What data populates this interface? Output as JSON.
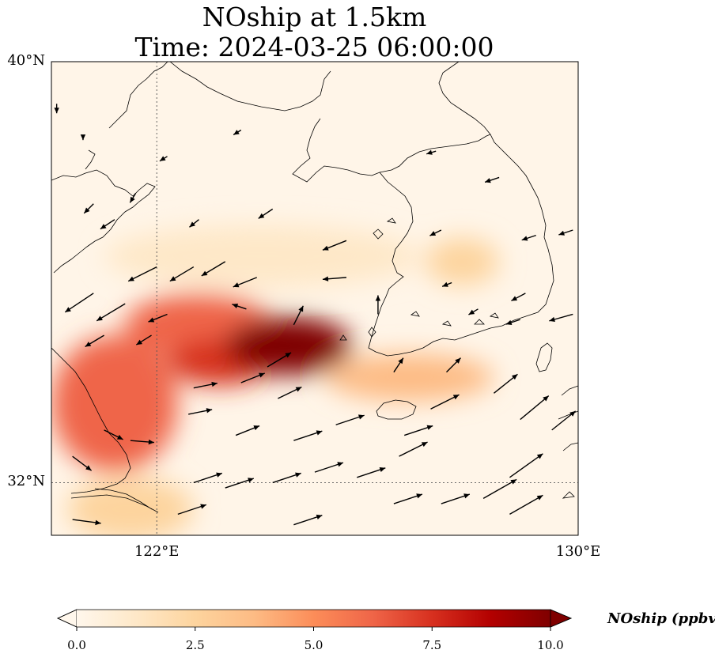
{
  "title": {
    "line1": "NOship at 1.5km",
    "line2": "Time: 2024-03-25 06:00:00"
  },
  "map": {
    "lon_range": [
      120,
      130
    ],
    "lat_range": [
      31,
      40
    ],
    "gridlines": {
      "lon": [
        122
      ],
      "lat": [
        32
      ]
    },
    "lon_ticks": [
      {
        "value": 122,
        "label": "122°E"
      },
      {
        "value": 130,
        "label": "130°E"
      }
    ],
    "lat_ticks": [
      {
        "value": 40,
        "label": "40°N"
      },
      {
        "value": 32,
        "label": "32°N"
      }
    ]
  },
  "colorbar": {
    "label": "NOship (ppbv)",
    "colormap": "OrRd",
    "range": [
      0,
      10
    ],
    "extend": "both",
    "ticks": [
      "0.0",
      "2.5",
      "5.0",
      "7.5",
      "10.0"
    ],
    "colors": [
      "#fff7ec",
      "#fee8c8",
      "#fdd49e",
      "#fdbb84",
      "#fc8d59",
      "#ef6548",
      "#d7301f",
      "#b30000",
      "#7f0000"
    ]
  },
  "field_blobs": [
    {
      "lon": 124.5,
      "lat": 34.6,
      "value": 9.5,
      "rx": 1.2,
      "ry": 0.55
    },
    {
      "lon": 123.2,
      "lat": 34.3,
      "value": 8.0,
      "rx": 1.0,
      "ry": 0.45
    },
    {
      "lon": 122.8,
      "lat": 35.0,
      "value": 6.5,
      "rx": 1.4,
      "ry": 0.6
    },
    {
      "lon": 121.2,
      "lat": 33.5,
      "value": 6.0,
      "rx": 1.2,
      "ry": 1.3
    },
    {
      "lon": 126.8,
      "lat": 34.0,
      "value": 3.5,
      "rx": 1.6,
      "ry": 0.45
    },
    {
      "lon": 127.8,
      "lat": 36.2,
      "value": 2.5,
      "rx": 0.7,
      "ry": 0.45
    },
    {
      "lon": 124.0,
      "lat": 36.3,
      "value": 1.2,
      "rx": 3.0,
      "ry": 0.6
    },
    {
      "lon": 121.5,
      "lat": 31.5,
      "value": 3.0,
      "rx": 1.2,
      "ry": 0.6
    }
  ],
  "wind_vectors": [
    {
      "lon": 120.1,
      "lat": 39.2,
      "u": 0.0,
      "v": -1.0
    },
    {
      "lon": 120.6,
      "lat": 38.6,
      "u": 0.0,
      "v": -0.5
    },
    {
      "lon": 120.8,
      "lat": 37.3,
      "u": -1.0,
      "v": -1.0
    },
    {
      "lon": 121.2,
      "lat": 37.0,
      "u": -1.5,
      "v": -1.0
    },
    {
      "lon": 121.6,
      "lat": 37.5,
      "u": -0.6,
      "v": -1.0
    },
    {
      "lon": 122.0,
      "lat": 36.1,
      "u": -3.0,
      "v": -1.5
    },
    {
      "lon": 122.7,
      "lat": 36.1,
      "u": -2.5,
      "v": -1.5
    },
    {
      "lon": 123.3,
      "lat": 36.2,
      "u": -2.5,
      "v": -1.5
    },
    {
      "lon": 123.9,
      "lat": 35.9,
      "u": -2.5,
      "v": -1.0
    },
    {
      "lon": 120.8,
      "lat": 35.6,
      "u": -3.0,
      "v": -2.0
    },
    {
      "lon": 121.4,
      "lat": 35.4,
      "u": -3.0,
      "v": -1.8
    },
    {
      "lon": 122.2,
      "lat": 35.2,
      "u": -2.0,
      "v": -0.8
    },
    {
      "lon": 121.0,
      "lat": 34.8,
      "u": -2.0,
      "v": -1.2
    },
    {
      "lon": 121.9,
      "lat": 34.8,
      "u": -1.6,
      "v": -1.0
    },
    {
      "lon": 123.7,
      "lat": 35.3,
      "u": -1.5,
      "v": 0.5
    },
    {
      "lon": 124.2,
      "lat": 37.2,
      "u": -1.5,
      "v": -1.0
    },
    {
      "lon": 122.8,
      "lat": 37.0,
      "u": -1.0,
      "v": -0.8
    },
    {
      "lon": 123.6,
      "lat": 38.7,
      "u": -0.8,
      "v": -0.5
    },
    {
      "lon": 122.2,
      "lat": 38.2,
      "u": -0.8,
      "v": -0.5
    },
    {
      "lon": 125.6,
      "lat": 36.6,
      "u": -2.5,
      "v": -1.0
    },
    {
      "lon": 125.6,
      "lat": 35.9,
      "u": -2.5,
      "v": -0.2
    },
    {
      "lon": 126.2,
      "lat": 35.2,
      "u": 0.0,
      "v": 2.0
    },
    {
      "lon": 126.5,
      "lat": 34.1,
      "u": 1.0,
      "v": 1.5
    },
    {
      "lon": 124.6,
      "lat": 35.0,
      "u": 1.0,
      "v": 2.0
    },
    {
      "lon": 124.1,
      "lat": 34.2,
      "u": 2.5,
      "v": 1.5
    },
    {
      "lon": 123.6,
      "lat": 33.9,
      "u": 2.5,
      "v": 1.0
    },
    {
      "lon": 122.7,
      "lat": 33.8,
      "u": 2.5,
      "v": 0.5
    },
    {
      "lon": 124.3,
      "lat": 33.6,
      "u": 2.5,
      "v": 1.2
    },
    {
      "lon": 122.6,
      "lat": 33.3,
      "u": 2.5,
      "v": 0.5
    },
    {
      "lon": 123.5,
      "lat": 32.9,
      "u": 2.5,
      "v": 1.0
    },
    {
      "lon": 124.6,
      "lat": 32.8,
      "u": 3.0,
      "v": 1.0
    },
    {
      "lon": 125.4,
      "lat": 33.1,
      "u": 3.0,
      "v": 1.0
    },
    {
      "lon": 126.7,
      "lat": 32.9,
      "u": 3.0,
      "v": 1.0
    },
    {
      "lon": 127.5,
      "lat": 34.1,
      "u": 1.5,
      "v": 1.5
    },
    {
      "lon": 127.2,
      "lat": 33.4,
      "u": 3.0,
      "v": 1.5
    },
    {
      "lon": 128.4,
      "lat": 33.7,
      "u": 2.5,
      "v": 2.0
    },
    {
      "lon": 128.9,
      "lat": 33.2,
      "u": 3.0,
      "v": 2.5
    },
    {
      "lon": 129.5,
      "lat": 33.0,
      "u": 2.5,
      "v": 2.0
    },
    {
      "lon": 120.4,
      "lat": 32.5,
      "u": 2.0,
      "v": -1.5
    },
    {
      "lon": 121.0,
      "lat": 33.0,
      "u": 2.0,
      "v": -1.0
    },
    {
      "lon": 121.5,
      "lat": 32.8,
      "u": 2.5,
      "v": -0.2
    },
    {
      "lon": 122.7,
      "lat": 32.0,
      "u": 3.0,
      "v": 1.0
    },
    {
      "lon": 123.3,
      "lat": 31.9,
      "u": 3.0,
      "v": 1.0
    },
    {
      "lon": 124.2,
      "lat": 32.0,
      "u": 3.0,
      "v": 1.0
    },
    {
      "lon": 125.0,
      "lat": 32.2,
      "u": 3.0,
      "v": 1.0
    },
    {
      "lon": 125.8,
      "lat": 32.1,
      "u": 3.0,
      "v": 1.0
    },
    {
      "lon": 126.6,
      "lat": 32.5,
      "u": 3.0,
      "v": 1.5
    },
    {
      "lon": 127.4,
      "lat": 31.6,
      "u": 3.0,
      "v": 1.0
    },
    {
      "lon": 128.2,
      "lat": 31.7,
      "u": 3.5,
      "v": 2.0
    },
    {
      "lon": 128.7,
      "lat": 32.1,
      "u": 3.5,
      "v": 2.5
    },
    {
      "lon": 130.0,
      "lat": 32.0,
      "u": 2.5,
      "v": 1.5
    },
    {
      "lon": 120.4,
      "lat": 31.3,
      "u": 3.0,
      "v": -0.4
    },
    {
      "lon": 122.4,
      "lat": 31.4,
      "u": 3.0,
      "v": 1.0
    },
    {
      "lon": 124.6,
      "lat": 31.2,
      "u": 3.0,
      "v": 1.0
    },
    {
      "lon": 126.5,
      "lat": 31.6,
      "u": 3.0,
      "v": 1.0
    },
    {
      "lon": 128.7,
      "lat": 31.4,
      "u": 3.5,
      "v": 2.0
    },
    {
      "lon": 128.1,
      "lat": 35.3,
      "u": -1.0,
      "v": -0.6
    },
    {
      "lon": 128.9,
      "lat": 35.1,
      "u": -1.5,
      "v": -0.5
    },
    {
      "lon": 129.0,
      "lat": 35.6,
      "u": -1.5,
      "v": -0.8
    },
    {
      "lon": 129.2,
      "lat": 36.7,
      "u": -1.5,
      "v": -0.5
    },
    {
      "lon": 129.9,
      "lat": 35.2,
      "u": -2.5,
      "v": -0.7
    },
    {
      "lon": 129.9,
      "lat": 36.8,
      "u": -1.5,
      "v": -0.5
    },
    {
      "lon": 128.5,
      "lat": 37.8,
      "u": -1.5,
      "v": -0.5
    },
    {
      "lon": 127.3,
      "lat": 38.3,
      "u": -1.0,
      "v": -0.3
    },
    {
      "lon": 127.4,
      "lat": 36.8,
      "u": -1.2,
      "v": -0.6
    },
    {
      "lon": 127.6,
      "lat": 35.8,
      "u": -1.0,
      "v": -0.4
    }
  ]
}
